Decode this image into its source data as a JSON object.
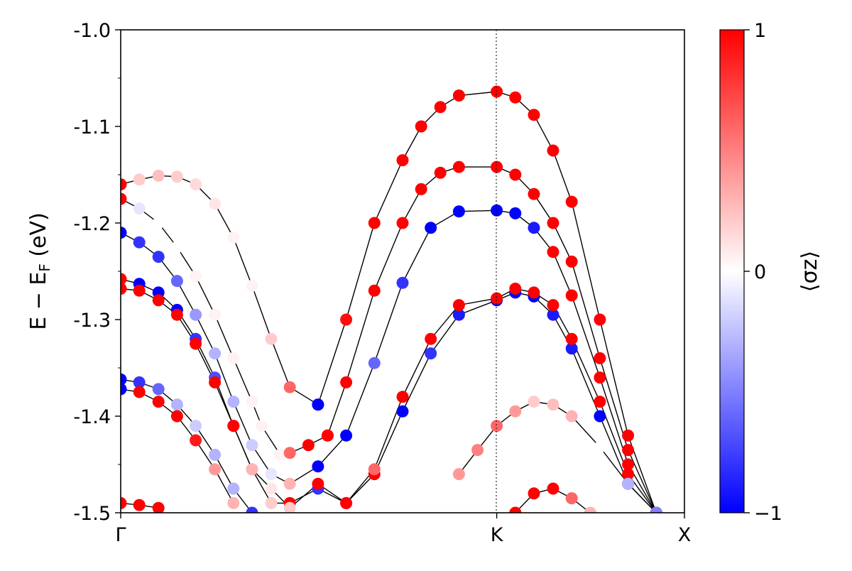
{
  "chart_data": {
    "type": "scatter",
    "subtype": "spin-resolved band structure",
    "ylabel": "E − E",
    "ylabel_sub": "F",
    "ylabel_unit": " (eV)",
    "ylim": [
      -1.5,
      -1.0
    ],
    "xlim": [
      0,
      1
    ],
    "yticks": [
      "-1.0",
      "-1.1",
      "-1.2",
      "-1.3",
      "-1.4",
      "-1.5"
    ],
    "ytick_values": [
      -1.0,
      -1.1,
      -1.2,
      -1.3,
      -1.4,
      -1.5
    ],
    "high_symmetry_points": [
      {
        "label": "Γ",
        "x": 0.0
      },
      {
        "label": "K",
        "x": 0.667
      },
      {
        "label": "X",
        "x": 1.0
      }
    ],
    "colorbar": {
      "label": "⟨σz⟩",
      "min": -1,
      "max": 1,
      "ticks": [
        "1",
        "0",
        "−1"
      ],
      "tick_values": [
        1,
        0,
        -1
      ],
      "colormap": [
        "#0000ff",
        "#ffffff",
        "#ff0000"
      ]
    },
    "bands": [
      {
        "points": [
          [
            0.0,
            -1.16
          ],
          [
            0.033,
            -1.155
          ],
          [
            0.067,
            -1.151
          ],
          [
            0.1,
            -1.152
          ],
          [
            0.133,
            -1.16
          ],
          [
            0.167,
            -1.18
          ],
          [
            0.2,
            -1.215
          ],
          [
            0.233,
            -1.265
          ],
          [
            0.267,
            -1.32
          ],
          [
            0.3,
            -1.37
          ],
          [
            0.35,
            -1.388
          ]
        ],
        "sz": [
          1.0,
          0.2,
          0.25,
          0.2,
          0.15,
          0.1,
          0.05,
          0.05,
          0.2,
          0.6,
          -1.0
        ]
      },
      {
        "points": [
          [
            0.35,
            -1.388
          ],
          [
            0.4,
            -1.3
          ],
          [
            0.45,
            -1.2
          ],
          [
            0.5,
            -1.135
          ],
          [
            0.533,
            -1.1
          ],
          [
            0.567,
            -1.08
          ],
          [
            0.6,
            -1.068
          ],
          [
            0.667,
            -1.064
          ],
          [
            0.7,
            -1.07
          ],
          [
            0.733,
            -1.088
          ],
          [
            0.767,
            -1.125
          ],
          [
            0.8,
            -1.178
          ],
          [
            0.85,
            -1.3
          ],
          [
            0.9,
            -1.42
          ],
          [
            0.95,
            -1.5
          ]
        ],
        "sz": [
          -1.0,
          0.95,
          1.0,
          1.0,
          1.0,
          1.0,
          1.0,
          1.0,
          1.0,
          1.0,
          1.0,
          1.0,
          1.0,
          1.0,
          1.0
        ]
      },
      {
        "points": [
          [
            0.0,
            -1.175
          ],
          [
            0.033,
            -1.185
          ],
          [
            0.067,
            -1.2
          ],
          [
            0.1,
            -1.225
          ],
          [
            0.133,
            -1.255
          ],
          [
            0.167,
            -1.295
          ],
          [
            0.2,
            -1.34
          ],
          [
            0.233,
            -1.385
          ],
          [
            0.25,
            -1.41
          ],
          [
            0.283,
            -1.44
          ],
          [
            0.3,
            -1.438
          ],
          [
            0.333,
            -1.43
          ],
          [
            0.367,
            -1.42
          ]
        ],
        "sz": [
          1.0,
          -0.1,
          0.0,
          0.0,
          0.05,
          0.05,
          0.05,
          0.05,
          0.05,
          0.05,
          0.6,
          1.0,
          1.0
        ]
      },
      {
        "points": [
          [
            0.367,
            -1.42
          ],
          [
            0.4,
            -1.365
          ],
          [
            0.45,
            -1.27
          ],
          [
            0.5,
            -1.2
          ],
          [
            0.533,
            -1.165
          ],
          [
            0.567,
            -1.148
          ],
          [
            0.6,
            -1.142
          ],
          [
            0.667,
            -1.142
          ],
          [
            0.7,
            -1.15
          ],
          [
            0.733,
            -1.17
          ],
          [
            0.767,
            -1.2
          ],
          [
            0.8,
            -1.24
          ],
          [
            0.85,
            -1.34
          ],
          [
            0.9,
            -1.435
          ],
          [
            0.95,
            -1.5
          ]
        ],
        "sz": [
          1.0,
          1.0,
          1.0,
          1.0,
          1.0,
          1.0,
          1.0,
          1.0,
          1.0,
          1.0,
          1.0,
          1.0,
          1.0,
          1.0,
          1.0
        ]
      },
      {
        "points": [
          [
            0.0,
            -1.21
          ],
          [
            0.033,
            -1.22
          ],
          [
            0.067,
            -1.235
          ],
          [
            0.1,
            -1.26
          ],
          [
            0.133,
            -1.295
          ],
          [
            0.167,
            -1.335
          ],
          [
            0.2,
            -1.385
          ],
          [
            0.233,
            -1.43
          ],
          [
            0.267,
            -1.46
          ],
          [
            0.3,
            -1.47
          ],
          [
            0.35,
            -1.452
          ],
          [
            0.4,
            -1.42
          ],
          [
            0.45,
            -1.345
          ],
          [
            0.5,
            -1.262
          ],
          [
            0.55,
            -1.205
          ],
          [
            0.6,
            -1.188
          ],
          [
            0.667,
            -1.187
          ],
          [
            0.7,
            -1.19
          ],
          [
            0.733,
            -1.205
          ],
          [
            0.767,
            -1.23
          ],
          [
            0.8,
            -1.275
          ],
          [
            0.85,
            -1.36
          ],
          [
            0.9,
            -1.45
          ],
          [
            0.95,
            -1.5
          ]
        ],
        "sz": [
          -1.0,
          -0.8,
          -0.8,
          -0.6,
          -0.4,
          -0.3,
          -0.3,
          -0.2,
          -0.1,
          0.3,
          -1.0,
          -1.0,
          -0.6,
          -0.8,
          -1.0,
          -1.0,
          -1.0,
          -1.0,
          -0.9,
          1.0,
          1.0,
          1.0,
          1.0,
          1.0
        ]
      },
      {
        "points": [
          [
            0.0,
            -1.258
          ],
          [
            0.033,
            -1.263
          ],
          [
            0.067,
            -1.272
          ],
          [
            0.1,
            -1.29
          ],
          [
            0.133,
            -1.32
          ],
          [
            0.167,
            -1.36
          ],
          [
            0.2,
            -1.41
          ],
          [
            0.233,
            -1.455
          ],
          [
            0.267,
            -1.49
          ],
          [
            0.3,
            -1.49
          ],
          [
            0.35,
            -1.475
          ],
          [
            0.4,
            -1.49
          ],
          [
            0.45,
            -1.46
          ],
          [
            0.5,
            -1.395
          ],
          [
            0.55,
            -1.335
          ],
          [
            0.6,
            -1.295
          ],
          [
            0.667,
            -1.28
          ],
          [
            0.7,
            -1.272
          ],
          [
            0.733,
            -1.276
          ],
          [
            0.767,
            -1.295
          ],
          [
            0.8,
            -1.33
          ],
          [
            0.85,
            -1.4
          ],
          [
            0.9,
            -1.47
          ],
          [
            0.95,
            -1.5
          ]
        ],
        "sz": [
          1.0,
          -1.0,
          -1.0,
          -1.0,
          -0.8,
          -0.7,
          -0.5,
          -0.4,
          0.2,
          1.0,
          -0.8,
          1.0,
          1.0,
          -1.0,
          -0.8,
          -0.9,
          -1.0,
          -1.0,
          -1.0,
          -0.9,
          -0.9,
          -1.0,
          -1.0,
          -1.0
        ]
      },
      {
        "points": [
          [
            0.0,
            -1.268
          ],
          [
            0.033,
            -1.27
          ],
          [
            0.067,
            -1.28
          ],
          [
            0.1,
            -1.295
          ],
          [
            0.133,
            -1.325
          ],
          [
            0.167,
            -1.365
          ],
          [
            0.2,
            -1.41
          ],
          [
            0.233,
            -1.455
          ],
          [
            0.267,
            -1.475
          ],
          [
            0.3,
            -1.495
          ],
          [
            0.35,
            -1.47
          ],
          [
            0.4,
            -1.49
          ],
          [
            0.45,
            -1.455
          ],
          [
            0.5,
            -1.38
          ],
          [
            0.55,
            -1.32
          ],
          [
            0.6,
            -1.285
          ],
          [
            0.667,
            -1.278
          ],
          [
            0.7,
            -1.268
          ],
          [
            0.733,
            -1.272
          ],
          [
            0.767,
            -1.285
          ],
          [
            0.8,
            -1.32
          ],
          [
            0.85,
            -1.385
          ],
          [
            0.9,
            -1.46
          ],
          [
            0.95,
            -1.5
          ]
        ],
        "sz": [
          1.0,
          1.0,
          1.0,
          1.0,
          1.0,
          1.0,
          1.0,
          0.3,
          0.1,
          0.2,
          1.0,
          1.0,
          0.6,
          1.0,
          1.0,
          1.0,
          1.0,
          1.0,
          1.0,
          1.0,
          1.0,
          1.0,
          1.0,
          1.0
        ]
      },
      {
        "points": [
          [
            0.0,
            -1.362
          ],
          [
            0.033,
            -1.365
          ],
          [
            0.067,
            -1.372
          ],
          [
            0.1,
            -1.388
          ],
          [
            0.133,
            -1.41
          ],
          [
            0.167,
            -1.44
          ],
          [
            0.2,
            -1.475
          ],
          [
            0.233,
            -1.5
          ]
        ],
        "sz": [
          -1.0,
          -0.8,
          -0.6,
          -0.3,
          -0.2,
          -0.3,
          -0.3,
          -0.8
        ]
      },
      {
        "points": [
          [
            0.0,
            -1.372
          ],
          [
            0.033,
            -1.375
          ],
          [
            0.067,
            -1.385
          ],
          [
            0.1,
            -1.4
          ],
          [
            0.133,
            -1.425
          ],
          [
            0.167,
            -1.455
          ],
          [
            0.2,
            -1.49
          ]
        ],
        "sz": [
          -1.0,
          1.0,
          1.0,
          1.0,
          0.9,
          0.4,
          0.3
        ]
      },
      {
        "points": [
          [
            0.0,
            -1.49
          ],
          [
            0.033,
            -1.492
          ],
          [
            0.067,
            -1.495
          ]
        ],
        "sz": [
          1.0,
          1.0,
          1.0
        ]
      },
      {
        "points": [
          [
            0.6,
            -1.46
          ],
          [
            0.633,
            -1.435
          ],
          [
            0.667,
            -1.41
          ],
          [
            0.7,
            -1.395
          ],
          [
            0.733,
            -1.385
          ],
          [
            0.767,
            -1.388
          ],
          [
            0.8,
            -1.4
          ],
          [
            0.85,
            -1.432
          ],
          [
            0.9,
            -1.47
          ],
          [
            0.95,
            -1.5
          ]
        ],
        "sz": [
          0.4,
          0.5,
          0.6,
          0.4,
          0.2,
          0.25,
          0.3,
          0.0,
          -0.3,
          -0.5
        ]
      },
      {
        "points": [
          [
            0.7,
            -1.5
          ],
          [
            0.733,
            -1.48
          ],
          [
            0.767,
            -1.475
          ],
          [
            0.8,
            -1.485
          ],
          [
            0.833,
            -1.5
          ]
        ],
        "sz": [
          1.0,
          1.0,
          1.0,
          0.6,
          0.3
        ]
      }
    ]
  }
}
